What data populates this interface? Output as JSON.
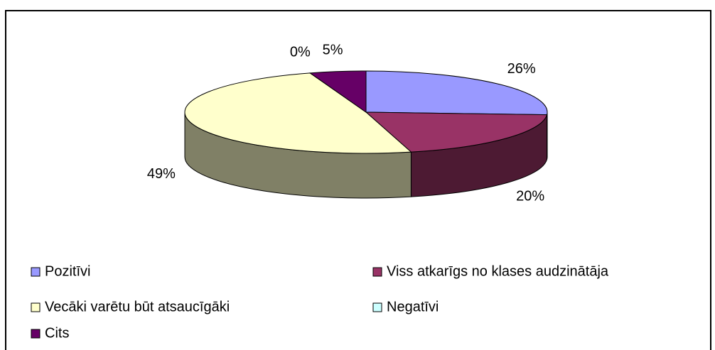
{
  "chart_data": {
    "type": "pie",
    "categories": [
      "Pozitīvi",
      "Viss atkarīgs no klases audzinātāja",
      "Vecāki varētu būt atsaucīgāki",
      "Negatīvi",
      "Cits"
    ],
    "values": [
      26,
      20,
      49,
      0,
      5
    ],
    "value_labels": [
      "26%",
      "20%",
      "49%",
      "0%",
      "5%"
    ],
    "colors": [
      "#9999ff",
      "#993366",
      "#ffffcc",
      "#ccffff",
      "#660066"
    ]
  }
}
